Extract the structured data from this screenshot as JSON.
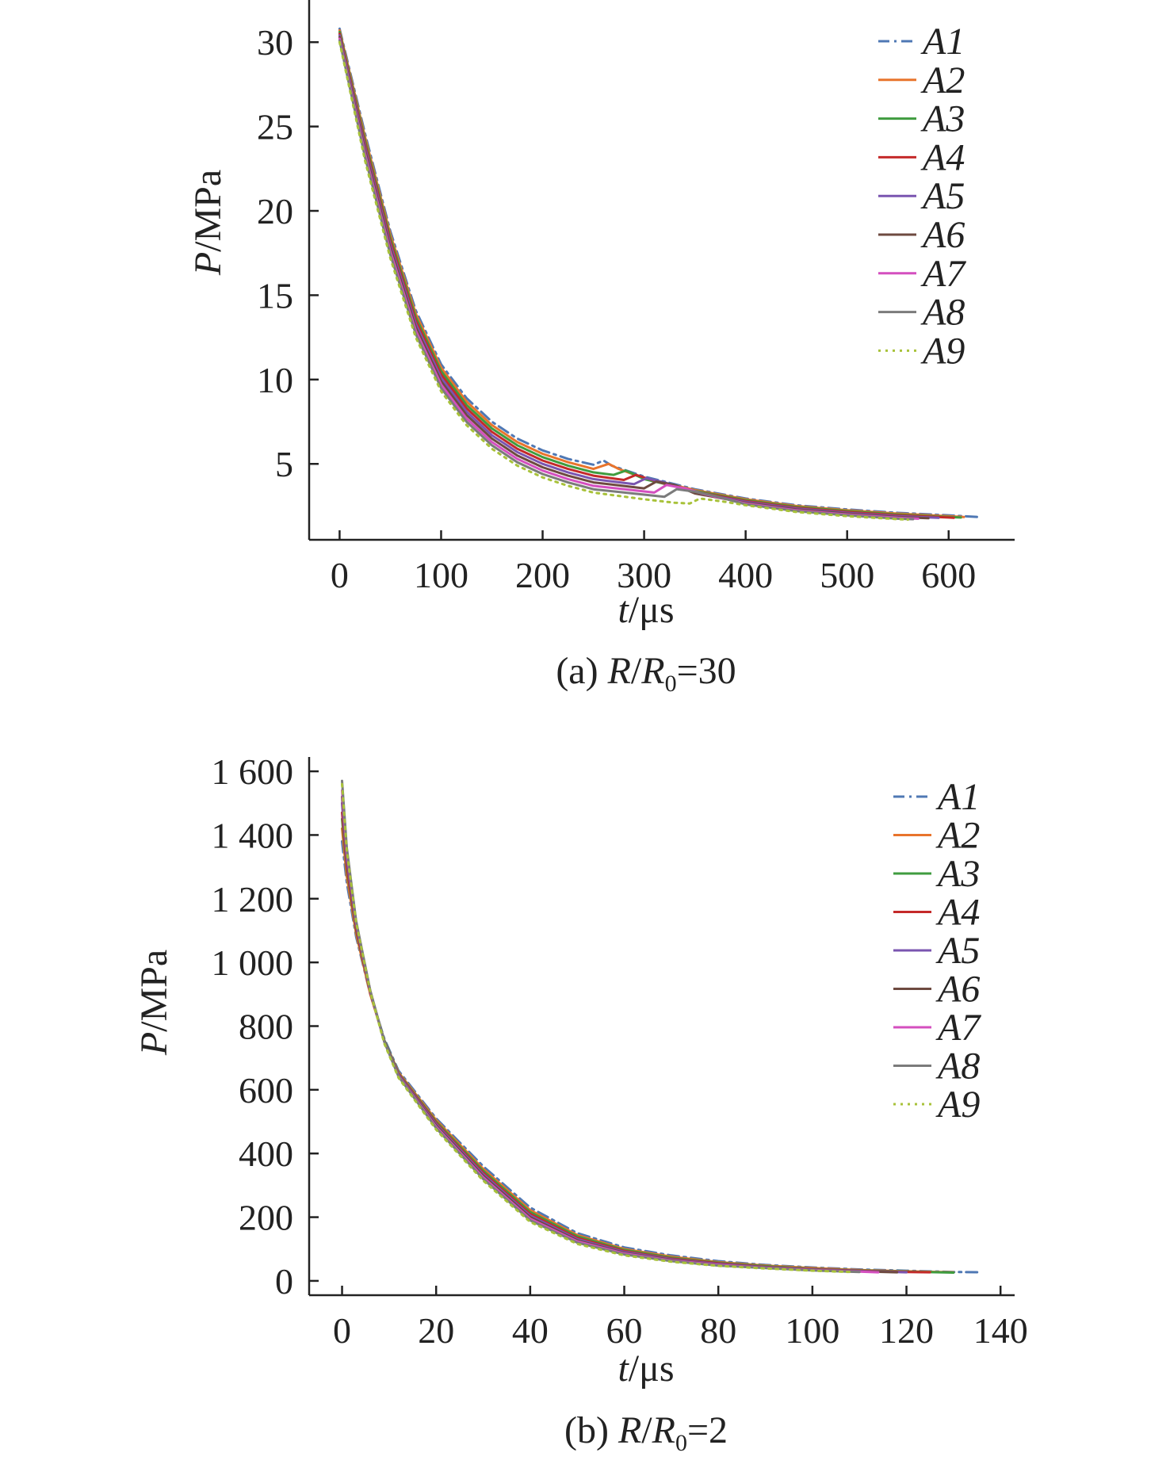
{
  "chart_data": [
    {
      "type": "line",
      "caption": {
        "prefix": "(a) ",
        "r": "R",
        "slash": "/",
        "r0": "R",
        "sub": "0",
        "eq": "=30"
      },
      "xlabel": {
        "var": "t",
        "unit": "/μs"
      },
      "ylabel": {
        "var": "P",
        "unit": "/MPa"
      },
      "xlim": [
        -30,
        665
      ],
      "ylim": [
        0.5,
        32.5
      ],
      "xticks": [
        0,
        100,
        200,
        300,
        400,
        500,
        600
      ],
      "xtick_labels": [
        "0",
        "100",
        "200",
        "300",
        "400",
        "500",
        "600"
      ],
      "yticks": [
        5,
        10,
        15,
        20,
        25,
        30
      ],
      "ytick_labels": [
        "5",
        "10",
        "15",
        "20",
        "25",
        "30"
      ],
      "legend_position": "top-right",
      "series": [
        {
          "name": "A1",
          "color": "#4f78b4",
          "dash": "dashdot",
          "x": [
            0,
            25,
            50,
            75,
            100,
            125,
            150,
            175,
            200,
            225,
            250,
            260,
            268,
            300,
            350,
            400,
            450,
            500,
            550,
            600,
            630
          ],
          "y": [
            30.8,
            24.6,
            18.8,
            14.1,
            10.9,
            8.9,
            7.5,
            6.5,
            5.8,
            5.3,
            4.95,
            5.2,
            4.9,
            4.25,
            3.5,
            2.95,
            2.55,
            2.3,
            2.1,
            1.95,
            1.85
          ]
        },
        {
          "name": "A2",
          "color": "#e8742c",
          "dash": "solid",
          "x": [
            0,
            25,
            50,
            75,
            100,
            125,
            150,
            175,
            200,
            225,
            250,
            265,
            275,
            300,
            350,
            400,
            450,
            500,
            550,
            600,
            615
          ],
          "y": [
            30.7,
            24.4,
            18.6,
            13.9,
            10.7,
            8.7,
            7.3,
            6.3,
            5.6,
            5.1,
            4.7,
            5.0,
            4.7,
            4.15,
            3.45,
            2.9,
            2.5,
            2.25,
            2.05,
            1.9,
            1.85
          ]
        },
        {
          "name": "A3",
          "color": "#3f9c3f",
          "dash": "solid",
          "x": [
            0,
            25,
            50,
            75,
            100,
            125,
            150,
            175,
            200,
            225,
            250,
            270,
            282,
            300,
            350,
            400,
            450,
            500,
            550,
            600,
            612
          ],
          "y": [
            30.6,
            24.2,
            18.4,
            13.7,
            10.5,
            8.5,
            7.1,
            6.1,
            5.4,
            4.9,
            4.5,
            4.35,
            4.6,
            4.1,
            3.4,
            2.85,
            2.45,
            2.2,
            2.0,
            1.85,
            1.82
          ]
        },
        {
          "name": "A4",
          "color": "#c42a2a",
          "dash": "solid",
          "x": [
            0,
            25,
            50,
            75,
            100,
            125,
            150,
            175,
            200,
            225,
            250,
            280,
            292,
            310,
            350,
            400,
            450,
            500,
            550,
            600,
            605
          ],
          "y": [
            30.5,
            24.0,
            18.2,
            13.5,
            10.3,
            8.3,
            6.9,
            5.9,
            5.2,
            4.7,
            4.3,
            4.05,
            4.35,
            4.0,
            3.35,
            2.8,
            2.4,
            2.15,
            1.95,
            1.82,
            1.8
          ]
        },
        {
          "name": "A5",
          "color": "#7a55b0",
          "dash": "solid",
          "x": [
            0,
            25,
            50,
            75,
            100,
            125,
            150,
            175,
            200,
            225,
            250,
            290,
            302,
            320,
            350,
            400,
            450,
            500,
            550,
            590
          ],
          "y": [
            30.4,
            23.8,
            18.0,
            13.3,
            10.1,
            8.1,
            6.7,
            5.7,
            5.0,
            4.5,
            4.1,
            3.8,
            4.15,
            3.9,
            3.3,
            2.75,
            2.35,
            2.1,
            1.9,
            1.8
          ]
        },
        {
          "name": "A6",
          "color": "#6e4a40",
          "dash": "solid",
          "x": [
            0,
            25,
            50,
            75,
            100,
            125,
            150,
            175,
            200,
            225,
            250,
            300,
            312,
            330,
            350,
            400,
            450,
            500,
            550,
            580
          ],
          "y": [
            30.3,
            23.6,
            17.8,
            13.1,
            9.9,
            7.9,
            6.5,
            5.5,
            4.8,
            4.3,
            3.9,
            3.55,
            3.95,
            3.75,
            3.25,
            2.7,
            2.3,
            2.05,
            1.85,
            1.78
          ]
        },
        {
          "name": "A7",
          "color": "#d44fbf",
          "dash": "solid",
          "x": [
            0,
            25,
            50,
            75,
            100,
            125,
            150,
            175,
            200,
            225,
            250,
            310,
            322,
            340,
            360,
            400,
            450,
            500,
            550,
            570
          ],
          "y": [
            30.2,
            23.4,
            17.6,
            12.9,
            9.7,
            7.7,
            6.3,
            5.3,
            4.6,
            4.1,
            3.7,
            3.3,
            3.75,
            3.55,
            3.2,
            2.65,
            2.25,
            2.0,
            1.8,
            1.75
          ]
        },
        {
          "name": "A8",
          "color": "#7b7b7b",
          "dash": "solid",
          "x": [
            0,
            25,
            50,
            75,
            100,
            125,
            150,
            175,
            200,
            225,
            250,
            320,
            332,
            350,
            370,
            400,
            450,
            500,
            550,
            565
          ],
          "y": [
            30.1,
            23.2,
            17.4,
            12.7,
            9.5,
            7.5,
            6.1,
            5.1,
            4.4,
            3.9,
            3.5,
            3.05,
            3.5,
            3.35,
            3.1,
            2.6,
            2.2,
            1.95,
            1.75,
            1.72
          ]
        },
        {
          "name": "A9",
          "color": "#a8c23a",
          "dash": "dotted",
          "x": [
            0,
            25,
            50,
            75,
            100,
            125,
            150,
            175,
            200,
            225,
            250,
            300,
            330,
            345,
            355,
            380,
            400,
            450,
            500,
            550,
            560
          ],
          "y": [
            30.0,
            23.0,
            17.2,
            12.5,
            9.3,
            7.3,
            5.9,
            4.9,
            4.2,
            3.7,
            3.3,
            2.9,
            2.7,
            2.65,
            2.95,
            2.75,
            2.55,
            2.15,
            1.9,
            1.72,
            1.7
          ]
        }
      ]
    },
    {
      "type": "line",
      "caption": {
        "prefix": "(b) ",
        "r": "R",
        "slash": "/",
        "r0": "R",
        "sub": "0",
        "eq": "=2"
      },
      "xlabel": {
        "var": "t",
        "unit": "/μs"
      },
      "ylabel": {
        "var": "P",
        "unit": "/MPa"
      },
      "xlim": [
        -7,
        143
      ],
      "ylim": [
        -45,
        1645
      ],
      "xticks": [
        0,
        20,
        40,
        60,
        80,
        100,
        120,
        140
      ],
      "xtick_labels": [
        "0",
        "20",
        "40",
        "60",
        "80",
        "100",
        "120",
        "140"
      ],
      "yticks": [
        0,
        200,
        400,
        600,
        800,
        1000,
        1200,
        1400,
        1600
      ],
      "ytick_labels": [
        "0",
        "200",
        "400",
        "600",
        "800",
        "1 000",
        "1 200",
        "1 400",
        "1 600"
      ],
      "legend_position": "top-right",
      "series": [
        {
          "name": "A1",
          "color": "#4f78b4",
          "dash": "dashdot",
          "x": [
            0,
            1,
            3,
            6,
            9,
            12,
            20,
            30,
            40,
            50,
            60,
            70,
            80,
            90,
            100,
            110,
            120,
            130,
            136
          ],
          "y": [
            1380,
            1250,
            1080,
            900,
            760,
            660,
            510,
            360,
            230,
            150,
            105,
            80,
            62,
            50,
            42,
            36,
            32,
            28,
            27
          ]
        },
        {
          "name": "A2",
          "color": "#e8742c",
          "dash": "solid",
          "x": [
            0,
            1,
            3,
            6,
            9,
            12,
            20,
            30,
            40,
            50,
            60,
            70,
            80,
            90,
            100,
            110,
            120,
            130
          ],
          "y": [
            1420,
            1270,
            1090,
            900,
            755,
            655,
            505,
            352,
            222,
            144,
            100,
            76,
            59,
            48,
            40,
            34,
            30,
            27
          ]
        },
        {
          "name": "A3",
          "color": "#3f9c3f",
          "dash": "solid",
          "x": [
            0,
            1,
            3,
            6,
            9,
            12,
            20,
            30,
            40,
            50,
            60,
            70,
            80,
            90,
            100,
            110,
            120,
            130
          ],
          "y": [
            1450,
            1290,
            1100,
            905,
            755,
            652,
            500,
            346,
            216,
            140,
            97,
            73,
            57,
            46,
            38,
            33,
            29,
            26
          ]
        },
        {
          "name": "A4",
          "color": "#c42a2a",
          "dash": "solid",
          "x": [
            0,
            1,
            3,
            6,
            9,
            12,
            20,
            30,
            40,
            50,
            60,
            70,
            80,
            90,
            100,
            110,
            120,
            125
          ],
          "y": [
            1470,
            1300,
            1105,
            905,
            752,
            650,
            496,
            340,
            210,
            135,
            94,
            70,
            55,
            44,
            37,
            32,
            28,
            27
          ]
        },
        {
          "name": "A5",
          "color": "#7a55b0",
          "dash": "solid",
          "x": [
            0,
            1,
            3,
            6,
            9,
            12,
            20,
            30,
            40,
            50,
            60,
            70,
            80,
            90,
            100,
            110,
            120
          ],
          "y": [
            1500,
            1320,
            1115,
            908,
            752,
            648,
            492,
            335,
            205,
            131,
            91,
            68,
            53,
            43,
            36,
            31,
            27
          ]
        },
        {
          "name": "A6",
          "color": "#6e4a40",
          "dash": "solid",
          "x": [
            0,
            1,
            3,
            6,
            9,
            12,
            20,
            30,
            40,
            50,
            60,
            70,
            80,
            90,
            100,
            110,
            118
          ],
          "y": [
            1520,
            1335,
            1120,
            910,
            752,
            646,
            488,
            330,
            200,
            127,
            88,
            66,
            51,
            42,
            35,
            30,
            27
          ]
        },
        {
          "name": "A7",
          "color": "#d44fbf",
          "dash": "solid",
          "x": [
            0,
            1,
            3,
            6,
            9,
            12,
            20,
            30,
            40,
            50,
            60,
            70,
            80,
            90,
            100,
            110,
            114
          ],
          "y": [
            1540,
            1345,
            1125,
            910,
            750,
            644,
            484,
            325,
            195,
            124,
            86,
            64,
            50,
            41,
            34,
            29,
            27
          ]
        },
        {
          "name": "A8",
          "color": "#7b7b7b",
          "dash": "solid",
          "x": [
            0,
            1,
            3,
            6,
            9,
            12,
            20,
            30,
            40,
            50,
            60,
            70,
            80,
            90,
            100,
            110
          ],
          "y": [
            1570,
            1360,
            1130,
            912,
            750,
            642,
            480,
            320,
            190,
            120,
            83,
            62,
            48,
            40,
            33,
            28
          ]
        },
        {
          "name": "A9",
          "color": "#a8c23a",
          "dash": "dotted",
          "x": [
            0,
            1,
            3,
            6,
            9,
            12,
            20,
            30,
            40,
            50,
            60,
            70,
            80,
            90,
            100,
            108
          ],
          "y": [
            1560,
            1350,
            1125,
            908,
            745,
            638,
            475,
            315,
            185,
            116,
            80,
            60,
            47,
            39,
            32,
            28
          ]
        }
      ]
    }
  ]
}
